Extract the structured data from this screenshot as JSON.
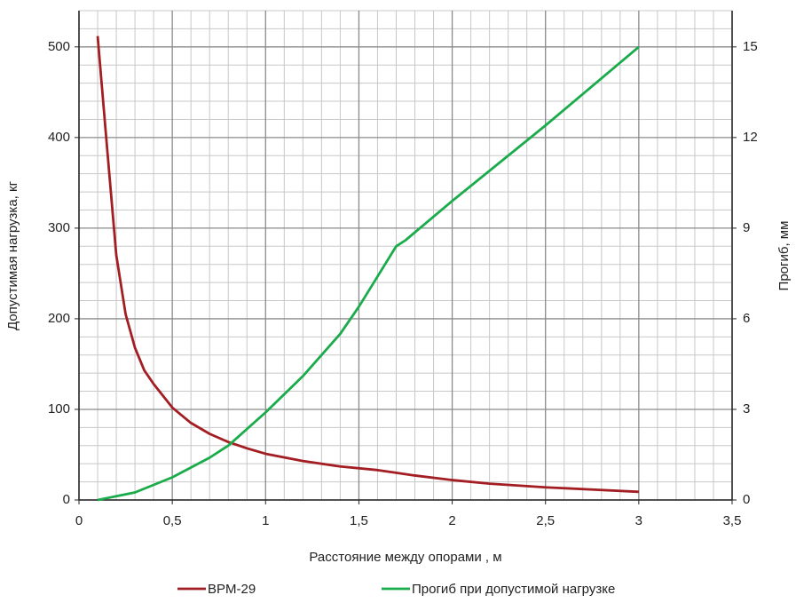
{
  "chart_data": {
    "type": "line",
    "x_label": "Расстояние между опорами , м",
    "y_label": "Допустимая нагрузка, кг",
    "y2_label": "Прогиб, мм",
    "xlim": [
      0,
      3.5
    ],
    "xticks": [
      0,
      {
        "value": 0.5,
        "label": "0,5"
      },
      1,
      {
        "value": 1.5,
        "label": "1,5"
      },
      2,
      {
        "value": 2.5,
        "label": "2,5"
      },
      3,
      {
        "value": 3.5,
        "label": "3,5"
      }
    ],
    "ylim": [
      0,
      540
    ],
    "yticks": [
      0,
      100,
      200,
      300,
      400,
      500
    ],
    "y2lim": [
      0,
      16.2
    ],
    "y2ticks": [
      0,
      3,
      6,
      9,
      12,
      15
    ],
    "grid": true,
    "series": [
      {
        "name": "BPM-29",
        "color": "#a31e22",
        "x": [
          0.1,
          0.15,
          0.2,
          0.25,
          0.3,
          0.35,
          0.4,
          0.5,
          0.6,
          0.7,
          0.8,
          0.9,
          1,
          1.2,
          1.4,
          1.6,
          1.7,
          1.8,
          2,
          2.2,
          2.5,
          2.75,
          3
        ],
        "values": [
          512,
          390,
          270,
          205,
          168,
          143,
          128,
          102,
          85,
          73,
          64,
          57,
          51,
          43,
          37,
          33,
          30,
          27,
          22,
          18,
          14,
          11.5,
          9
        ]
      },
      {
        "name": "Прогиб при допустимой нагрузке",
        "color": "#1aab4b",
        "axis": "y2",
        "x": [
          0.1,
          0.3,
          0.5,
          0.7,
          0.8,
          1,
          1.2,
          1.4,
          1.5,
          1.6,
          1.7,
          1.75,
          2,
          2.5,
          3
        ],
        "values": [
          0,
          0.25,
          0.75,
          1.4,
          1.8,
          2.9,
          4.1,
          5.5,
          6.4,
          7.4,
          8.4,
          8.6,
          9.9,
          12.4,
          15
        ]
      }
    ]
  }
}
